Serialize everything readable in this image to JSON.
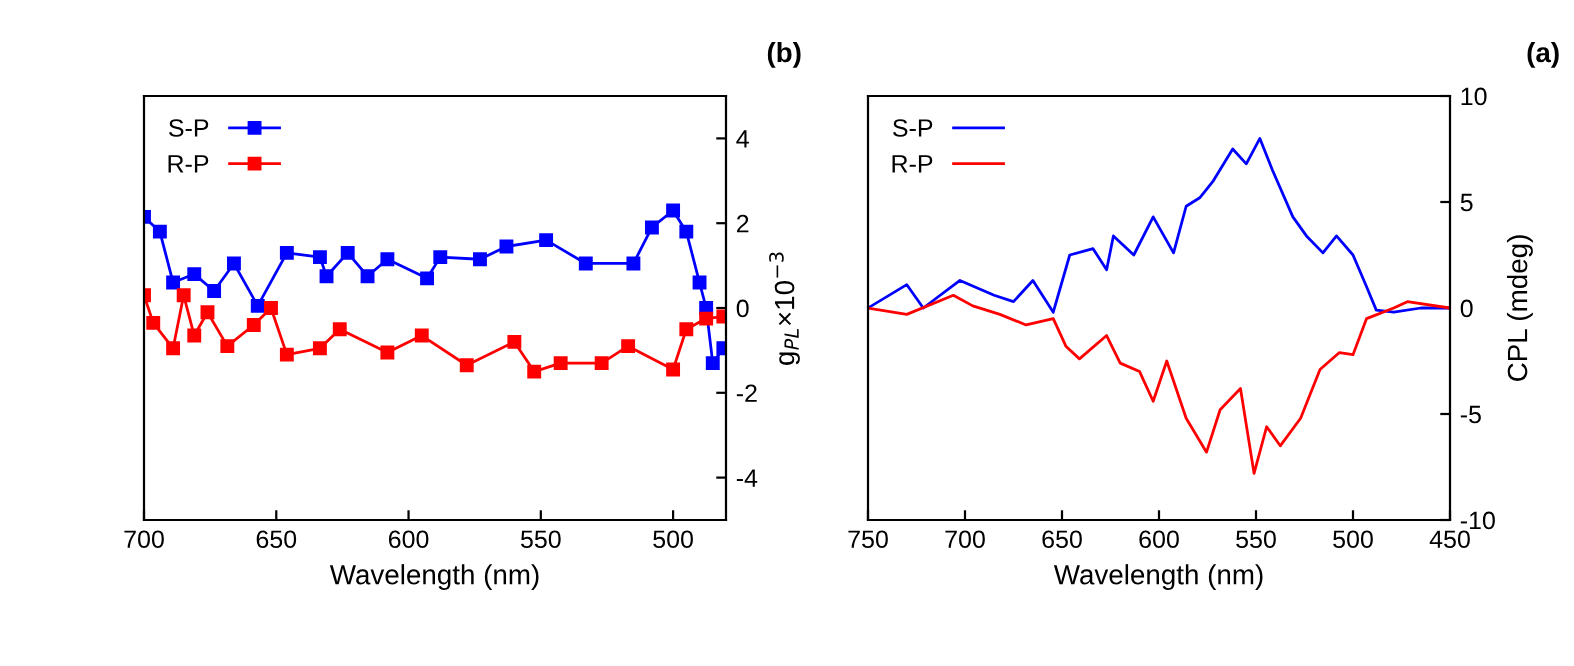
{
  "chart_data": [
    {
      "type": "line",
      "xlabel": "Wavelength (nm)",
      "ylabel": "g$_{PL}$×10$^{−3}$",
      "annotations": [
        "(b)"
      ],
      "xlim": [
        700,
        480
      ],
      "xticks": [
        700,
        650,
        600,
        550,
        500
      ],
      "ylim": [
        -5,
        5
      ],
      "yticks": [
        -4,
        -2,
        0,
        2,
        4
      ],
      "marker": "square",
      "legend": "top left",
      "grid": false,
      "series": [
        {
          "name": "S-P",
          "color": "#0000ff",
          "x": [
            700,
            694,
            689,
            681,
            673.5,
            666,
            657,
            646,
            633.5,
            631,
            623,
            615.5,
            608,
            593,
            588,
            573,
            563,
            548,
            533,
            515,
            508,
            500,
            495,
            490,
            487.5,
            485,
            481
          ],
          "values": [
            2.15,
            1.8,
            0.6,
            0.8,
            0.4,
            1.05,
            0.05,
            1.3,
            1.2,
            0.75,
            1.3,
            0.75,
            1.15,
            0.7,
            1.2,
            1.15,
            1.45,
            1.6,
            1.05,
            1.05,
            1.9,
            2.3,
            1.8,
            0.6,
            0,
            -1.3,
            -0.95
          ]
        },
        {
          "name": "R-P",
          "color": "#ff0000",
          "x": [
            700,
            696.5,
            689,
            685,
            681,
            676,
            668.5,
            658.5,
            652,
            646,
            633.5,
            626,
            608,
            595,
            578,
            560,
            552.5,
            542.5,
            527,
            517,
            500,
            495,
            487.5,
            481
          ],
          "values": [
            0.3,
            -0.35,
            -0.95,
            0.3,
            -0.65,
            -0.1,
            -0.9,
            -0.4,
            0,
            -1.1,
            -0.95,
            -0.5,
            -1.05,
            -0.65,
            -1.35,
            -0.8,
            -1.5,
            -1.3,
            -1.3,
            -0.9,
            -1.45,
            -0.5,
            -0.25,
            -0.2
          ]
        }
      ]
    },
    {
      "type": "line",
      "xlabel": "Wavelength (nm)",
      "ylabel": "CPL (mdeg)",
      "annotations": [
        "(a)"
      ],
      "xlim": [
        750,
        450
      ],
      "xticks": [
        750,
        700,
        650,
        600,
        550,
        500,
        450
      ],
      "ylim": [
        -10,
        10
      ],
      "yticks": [
        -10,
        -5,
        0,
        5,
        10
      ],
      "legend": "top left",
      "grid": false,
      "series": [
        {
          "name": "S-P",
          "color": "#0000ff",
          "x": [
            750,
            730,
            721.5,
            702.6,
            685,
            675,
            665,
            654.5,
            646,
            634,
            627,
            623.5,
            613,
            603,
            592.5,
            586,
            579,
            572,
            562,
            555,
            548,
            541.5,
            531,
            524,
            515.5,
            508.5,
            500,
            493,
            488,
            479,
            465,
            450
          ],
          "values": [
            0,
            1.1,
            0,
            1.3,
            0.6,
            0.3,
            1.3,
            -0.2,
            2.5,
            2.8,
            1.8,
            3.4,
            2.5,
            4.3,
            2.6,
            4.8,
            5.2,
            6.0,
            7.5,
            6.8,
            8.0,
            6.5,
            4.3,
            3.4,
            2.6,
            3.4,
            2.5,
            1.0,
            -0.1,
            -0.2,
            0,
            0
          ]
        },
        {
          "name": "R-P",
          "color": "#ff0000",
          "x": [
            750,
            730,
            706,
            696,
            682,
            668.5,
            654.5,
            648,
            641,
            627,
            620,
            610,
            603,
            596,
            586,
            575.5,
            568.5,
            558,
            551,
            544.5,
            537.5,
            527,
            517,
            507,
            500,
            493,
            479,
            472,
            450
          ],
          "values": [
            0,
            -0.3,
            0.6,
            0.1,
            -0.3,
            -0.8,
            -0.5,
            -1.8,
            -2.4,
            -1.3,
            -2.6,
            -3.0,
            -4.4,
            -2.5,
            -5.2,
            -6.8,
            -4.8,
            -3.8,
            -7.8,
            -5.6,
            -6.5,
            -5.2,
            -2.9,
            -2.1,
            -2.2,
            -0.5,
            0,
            0.3,
            0
          ]
        }
      ]
    }
  ]
}
